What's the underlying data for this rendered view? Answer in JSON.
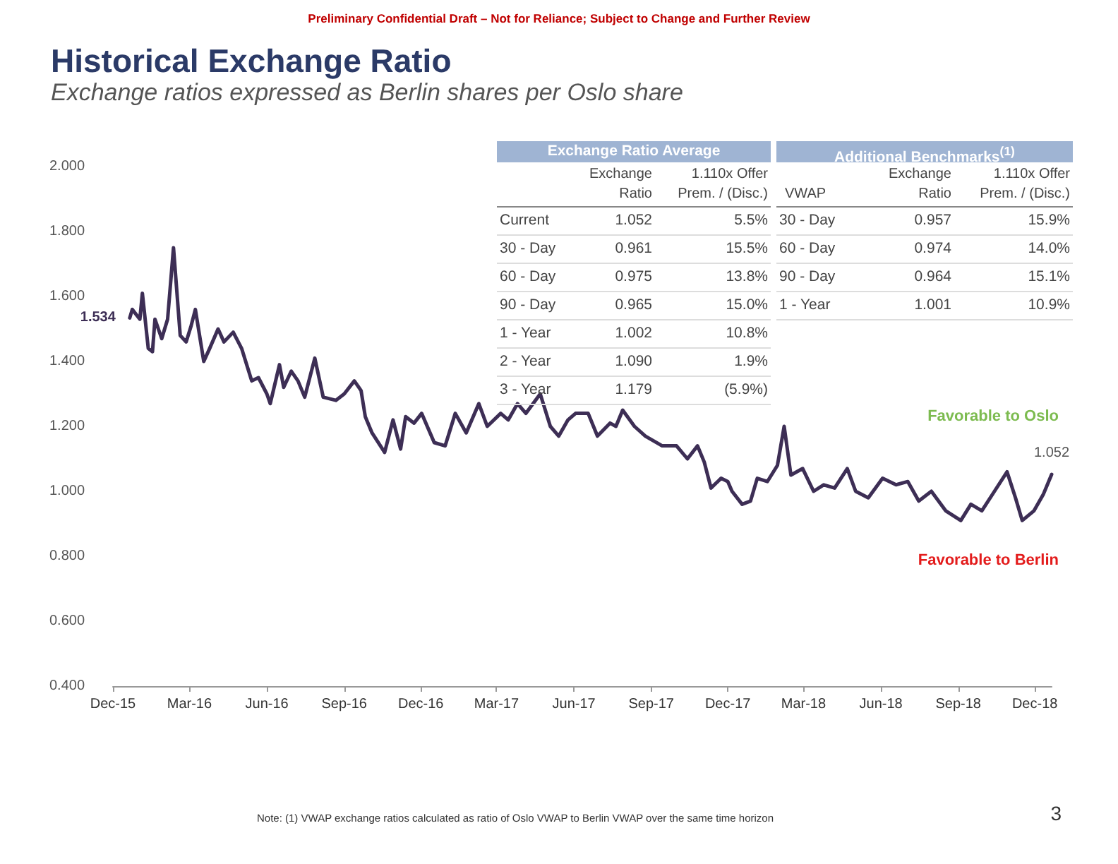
{
  "chart_data": [
    {
      "type": "line",
      "title": "Historical Exchange Ratio",
      "subtitle": "Exchange ratios expressed as Berlin shares per Oslo share",
      "annotations": [
        "Preliminary Confidential Draft – Not for Reliance; Subject to Change and Further Review",
        "Favorable to Oslo",
        "Favorable to Berlin",
        "Note:  (1)  VWAP exchange ratios calculated as ratio of Oslo VWAP to Berlin VWAP over the same time horizon",
        "3",
        {
          "text": "1.534",
          "x": "2015-12-21",
          "y": 1.534
        },
        {
          "text": "1.052",
          "x": "2018-12-21",
          "y": 1.052
        }
      ],
      "x": [
        "2015-12-21",
        "2015-12-24",
        "2016-01-02",
        "2016-01-05",
        "2016-01-12",
        "2016-01-17",
        "2016-01-20",
        "2016-01-28",
        "2016-02-04",
        "2016-02-11",
        "2016-02-19",
        "2016-02-26",
        "2016-03-03",
        "2016-03-08",
        "2016-03-18",
        "2016-03-25",
        "2016-04-04",
        "2016-04-11",
        "2016-04-22",
        "2016-05-02",
        "2016-05-14",
        "2016-05-22",
        "2016-06-01",
        "2016-06-05",
        "2016-06-16",
        "2016-06-21",
        "2016-06-30",
        "2016-07-08",
        "2016-07-16",
        "2016-07-28",
        "2016-08-07",
        "2016-08-22",
        "2016-09-01",
        "2016-09-13",
        "2016-09-21",
        "2016-09-26",
        "2016-10-04",
        "2016-10-19",
        "2016-10-29",
        "2016-11-07",
        "2016-11-13",
        "2016-11-23",
        "2016-12-02",
        "2016-12-17",
        "2016-12-30",
        "2017-01-11",
        "2017-01-24",
        "2017-02-08",
        "2017-02-18",
        "2017-03-06",
        "2017-03-15",
        "2017-03-26",
        "2017-04-05",
        "2017-04-22",
        "2017-05-04",
        "2017-05-14",
        "2017-05-25",
        "2017-06-03",
        "2017-06-18",
        "2017-06-29",
        "2017-07-14",
        "2017-07-21",
        "2017-07-29",
        "2017-08-12",
        "2017-08-25",
        "2017-09-14",
        "2017-10-01",
        "2017-10-14",
        "2017-10-26",
        "2017-11-03",
        "2017-11-11",
        "2017-11-23",
        "2017-12-01",
        "2017-12-06",
        "2017-12-18",
        "2017-12-28",
        "2018-01-05",
        "2018-01-17",
        "2018-01-29",
        "2018-02-06",
        "2018-02-14",
        "2018-02-28",
        "2018-03-13",
        "2018-03-25",
        "2018-04-07",
        "2018-04-22",
        "2018-05-02",
        "2018-05-17",
        "2018-06-03",
        "2018-06-19",
        "2018-07-03",
        "2018-07-16",
        "2018-07-31",
        "2018-08-17",
        "2018-09-04",
        "2018-09-16",
        "2018-09-29",
        "2018-10-14",
        "2018-10-29",
        "2018-11-08",
        "2018-11-16",
        "2018-11-30",
        "2018-12-11",
        "2018-12-21"
      ],
      "series": [
        {
          "color": "#3d2e55",
          "values": [
            1.534,
            1.56,
            1.53,
            1.61,
            1.44,
            1.43,
            1.53,
            1.47,
            1.53,
            1.75,
            1.48,
            1.46,
            1.51,
            1.56,
            1.4,
            1.44,
            1.5,
            1.46,
            1.49,
            1.44,
            1.34,
            1.35,
            1.3,
            1.27,
            1.39,
            1.32,
            1.37,
            1.34,
            1.29,
            1.41,
            1.29,
            1.28,
            1.3,
            1.34,
            1.31,
            1.23,
            1.18,
            1.12,
            1.22,
            1.13,
            1.23,
            1.21,
            1.24,
            1.15,
            1.14,
            1.24,
            1.18,
            1.27,
            1.2,
            1.24,
            1.22,
            1.27,
            1.24,
            1.3,
            1.2,
            1.17,
            1.22,
            1.24,
            1.24,
            1.17,
            1.21,
            1.2,
            1.25,
            1.2,
            1.17,
            1.14,
            1.14,
            1.1,
            1.14,
            1.09,
            1.01,
            1.04,
            1.03,
            1.0,
            0.96,
            0.97,
            1.04,
            1.03,
            1.08,
            1.2,
            1.05,
            1.07,
            1.0,
            1.02,
            1.01,
            1.07,
            1.0,
            0.98,
            1.04,
            1.02,
            1.03,
            0.97,
            1.0,
            0.94,
            0.91,
            0.96,
            0.94,
            1.0,
            1.06,
            0.98,
            0.91,
            0.94,
            0.99,
            1.052
          ]
        }
      ],
      "xlim": [
        "2015-12-01",
        "2018-12-21"
      ],
      "xticks": [
        {
          "value": "2015-12-01",
          "label": "Dec-15"
        },
        {
          "value": "2016-03-01",
          "label": "Mar-16"
        },
        {
          "value": "2016-06-01",
          "label": "Jun-16"
        },
        {
          "value": "2016-09-01",
          "label": "Sep-16"
        },
        {
          "value": "2016-12-01",
          "label": "Dec-16"
        },
        {
          "value": "2017-03-01",
          "label": "Mar-17"
        },
        {
          "value": "2017-06-01",
          "label": "Jun-17"
        },
        {
          "value": "2017-09-01",
          "label": "Sep-17"
        },
        {
          "value": "2017-12-01",
          "label": "Dec-17"
        },
        {
          "value": "2018-03-01",
          "label": "Mar-18"
        },
        {
          "value": "2018-06-01",
          "label": "Jun-18"
        },
        {
          "value": "2018-09-01",
          "label": "Sep-18"
        },
        {
          "value": "2018-12-01",
          "label": "Dec-18"
        }
      ],
      "ylim": [
        0.4,
        2.0
      ],
      "yticks": [
        {
          "value": 0.4,
          "label": "0.400"
        },
        {
          "value": 0.6,
          "label": "0.600"
        },
        {
          "value": 0.8,
          "label": "0.800"
        },
        {
          "value": 1.0,
          "label": "1.000"
        },
        {
          "value": 1.2,
          "label": "1.200"
        },
        {
          "value": 1.4,
          "label": "1.400"
        },
        {
          "value": 1.6,
          "label": "1.600"
        },
        {
          "value": 1.8,
          "label": "1.800"
        },
        {
          "value": 2.0,
          "label": "2.000"
        }
      ],
      "marker": "none",
      "line_style": "solid"
    },
    {
      "type": "other",
      "title": "Exchange Ratio Average",
      "categories": [
        null,
        "Exchange Ratio",
        "1.110x Offer Prem. / (Disc.)"
      ],
      "y_categories": [
        "Current",
        "30 - Day",
        "60 - Day",
        "90 - Day",
        "1 - Year",
        "2 - Year",
        "3 - Year"
      ],
      "cell_labels": [
        [
          "1.052",
          "5.5%"
        ],
        [
          "0.961",
          "15.5%"
        ],
        [
          "0.975",
          "13.8%"
        ],
        [
          "0.965",
          "15.0%"
        ],
        [
          "1.002",
          "10.8%"
        ],
        [
          "1.090",
          "1.9%"
        ],
        [
          "1.179",
          "(5.9%)"
        ]
      ]
    },
    {
      "type": "other",
      "title": "Additional Benchmarks$^{(1)}$",
      "categories": [
        "VWAP",
        "Exchange Ratio",
        "1.110x Offer Prem. / (Disc.)"
      ],
      "y_categories": [
        "30 - Day",
        "60 - Day",
        "90 - Day",
        "1 - Year"
      ],
      "cell_labels": [
        [
          "0.957",
          "15.9%"
        ],
        [
          "0.974",
          "14.0%"
        ],
        [
          "0.964",
          "15.1%"
        ],
        [
          "1.001",
          "10.9%"
        ]
      ]
    }
  ]
}
